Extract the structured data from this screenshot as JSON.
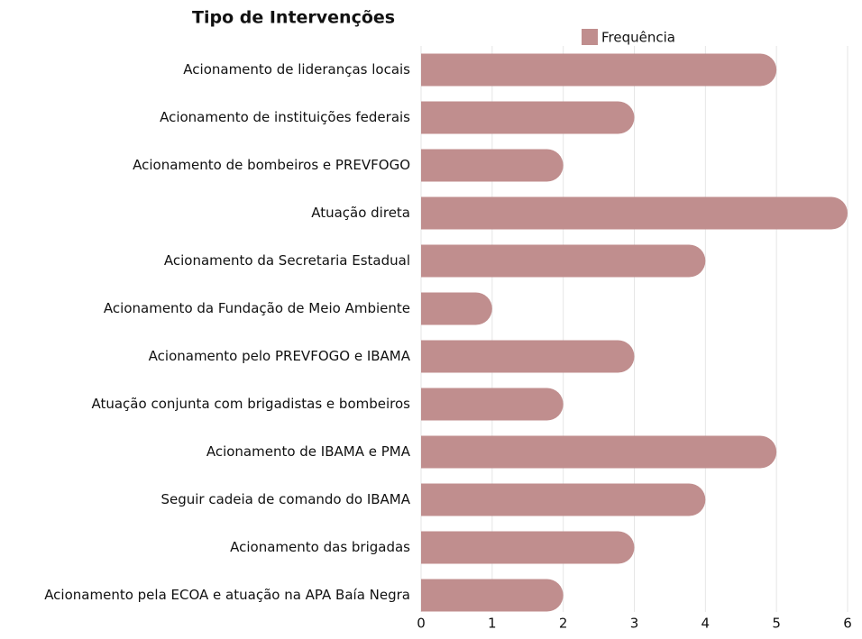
{
  "chart_data": {
    "type": "bar",
    "orientation": "horizontal",
    "title": "Tipo de Intervenções",
    "categories": [
      "Acionamento de lideranças locais",
      "Acionamento de instituições federais",
      "Acionamento de bombeiros e PREVFOGO",
      "Atuação direta",
      "Acionamento da Secretaria Estadual",
      "Acionamento da Fundação de Meio Ambiente",
      "Acionamento pelo PREVFOGO e IBAMA",
      "Atuação conjunta com brigadistas e bombeiros",
      "Acionamento de IBAMA e PMA",
      "Seguir cadeia de comando do IBAMA",
      "Acionamento das brigadas",
      "Acionamento pela ECOA e atuação na APA Baía Negra"
    ],
    "series": [
      {
        "name": "Frequência",
        "color": "#c08e8e",
        "values": [
          5,
          3,
          2,
          6,
          4,
          1,
          3,
          2,
          5,
          4,
          3,
          2
        ]
      }
    ],
    "xlim": [
      0,
      6
    ],
    "xticks": [
      0,
      1,
      2,
      3,
      4,
      5,
      6
    ],
    "grid": true,
    "legend": "top"
  }
}
